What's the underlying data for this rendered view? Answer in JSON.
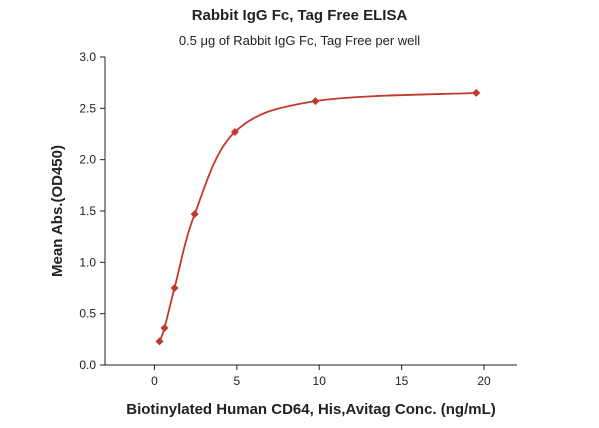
{
  "chart_data": {
    "type": "scatter",
    "title": "Rabbit IgG Fc, Tag Free ELISA",
    "subtitle": "0.5 μg of Rabbit IgG Fc, Tag Free per well",
    "xlabel": "Biotinylated Human CD64, His,Avitag Conc. (ng/mL)",
    "ylabel": "Mean Abs.(OD450)",
    "xlim": [
      -3,
      22
    ],
    "ylim": [
      0,
      3.0
    ],
    "xticks": [
      "0",
      "5",
      "10",
      "15",
      "20"
    ],
    "yticks": [
      "0.0",
      "0.5",
      "1.0",
      "1.5",
      "2.0",
      "2.5",
      "3.0"
    ],
    "grid": false,
    "legend": "none",
    "series": [
      {
        "x": [
          0.305,
          0.61,
          1.22,
          2.44,
          4.88,
          9.77,
          19.53
        ],
        "y": [
          0.23,
          0.36,
          0.75,
          1.47,
          2.27,
          2.57,
          2.65
        ]
      }
    ],
    "fit_curve": "sigmoidal fit through the points",
    "colors": {
      "series": "#c0392b",
      "axis": "#222222"
    }
  }
}
